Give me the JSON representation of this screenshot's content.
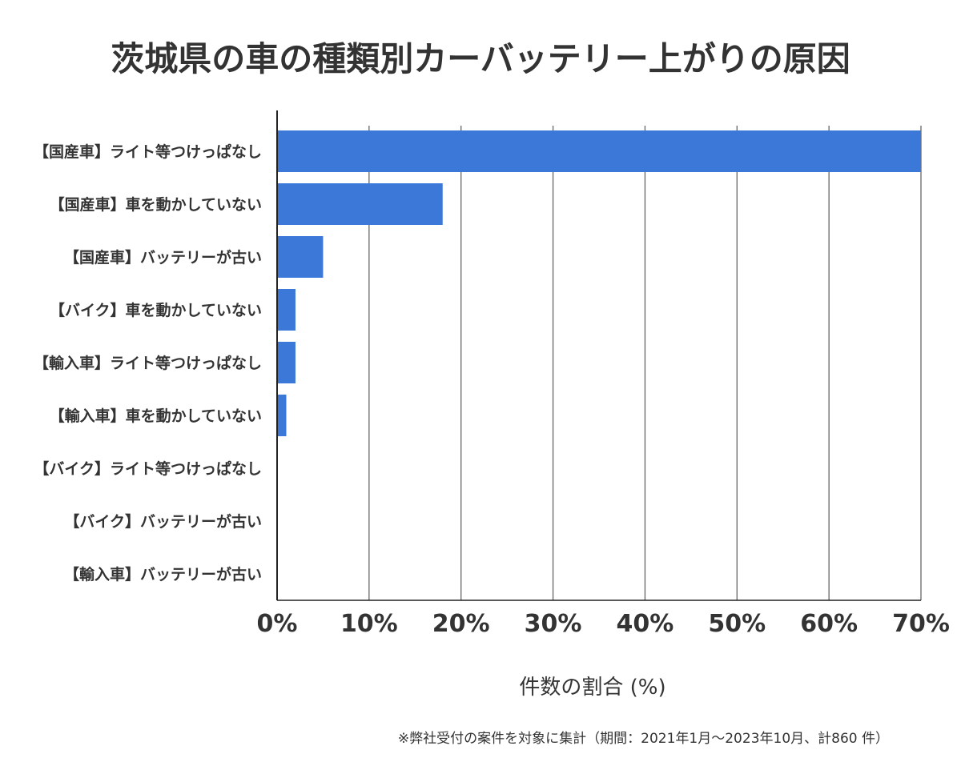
{
  "chart_data": {
    "type": "bar",
    "orientation": "horizontal",
    "title": "茨城県の車の種類別カーバッテリー上がりの原因",
    "xlabel": "件数の割合 (%)",
    "ylabel": "",
    "categories": [
      "【国産車】ライト等つけっぱなし",
      "【国産車】車を動かしていない",
      "【国産車】バッテリーが古い",
      "【バイク】車を動かしていない",
      "【輸入車】ライト等つけっぱなし",
      "【輸入車】車を動かしていない",
      "【バイク】ライト等つけっぱなし",
      "【バイク】バッテリーが古い",
      "【輸入車】バッテリーが古い"
    ],
    "values": [
      70,
      18,
      5,
      2,
      2,
      1,
      0,
      0,
      0
    ],
    "xlim": [
      0,
      70
    ],
    "xticks": [
      0,
      10,
      20,
      30,
      40,
      50,
      60,
      70
    ],
    "xtick_labels": [
      "0%",
      "10%",
      "20%",
      "30%",
      "40%",
      "50%",
      "60%",
      "70%"
    ],
    "grid": true,
    "bar_color": "#3c78d8",
    "note": "※弊社受付の案件を対象に集計（期間：2021年1月～2023年10月、計860 件）"
  }
}
